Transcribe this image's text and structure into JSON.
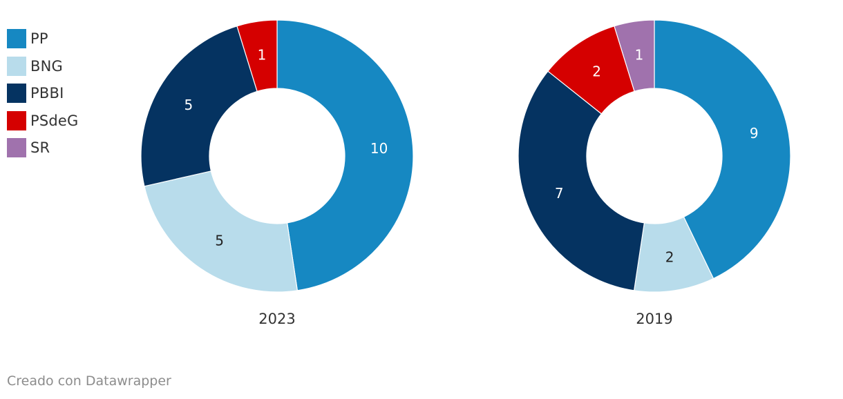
{
  "legend": [
    {
      "label": "PP",
      "color": "#1688c2"
    },
    {
      "label": "BNG",
      "color": "#b8dceb"
    },
    {
      "label": "PBBI",
      "color": "#053361"
    },
    {
      "label": "PSdeG",
      "color": "#d50000"
    },
    {
      "label": "SR",
      "color": "#a072ad"
    }
  ],
  "chart_data": [
    {
      "type": "pie",
      "variant": "donut",
      "title": "2023",
      "categories": [
        "PP",
        "BNG",
        "PBBI",
        "PSdeG"
      ],
      "values": [
        10,
        5,
        5,
        1
      ],
      "colors": [
        "#1688c2",
        "#b8dceb",
        "#053361",
        "#d50000"
      ],
      "label_colors": [
        "#ffffff",
        "#222222",
        "#ffffff",
        "#ffffff"
      ]
    },
    {
      "type": "pie",
      "variant": "donut",
      "title": "2019",
      "categories": [
        "PP",
        "BNG",
        "PBBI",
        "PSdeG",
        "SR"
      ],
      "values": [
        9,
        2,
        7,
        2,
        1
      ],
      "colors": [
        "#1688c2",
        "#b8dceb",
        "#053361",
        "#d50000",
        "#a072ad"
      ],
      "label_colors": [
        "#ffffff",
        "#222222",
        "#ffffff",
        "#ffffff",
        "#ffffff"
      ]
    }
  ],
  "footer": "Creado con Datawrapper"
}
